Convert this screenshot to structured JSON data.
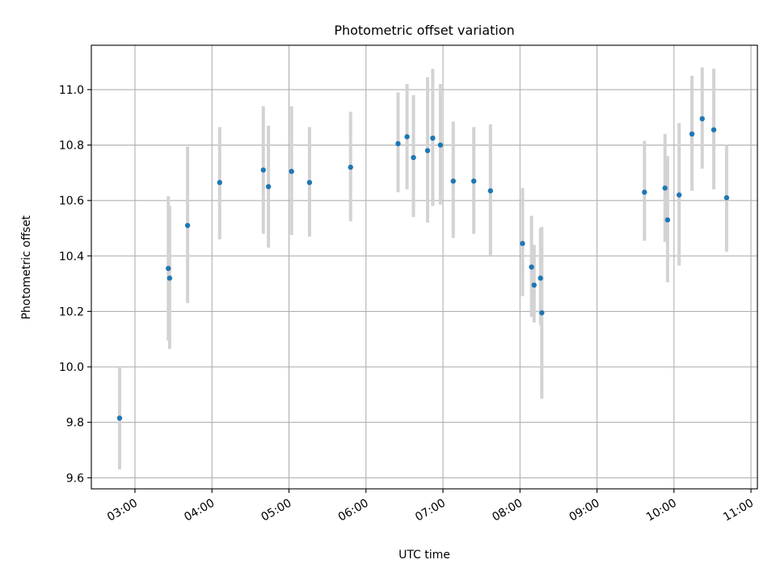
{
  "chart_data": {
    "type": "scatter",
    "title": "Photometric offset variation",
    "xlabel": "UTC time",
    "ylabel": "Photometric offset",
    "x_axis": "time (HH:MM)",
    "xlim": [
      "02:26",
      "11:05"
    ],
    "ylim": [
      9.56,
      11.16
    ],
    "x_ticks": [
      "03:00",
      "04:00",
      "05:00",
      "06:00",
      "07:00",
      "08:00",
      "09:00",
      "10:00",
      "11:00"
    ],
    "y_ticks": [
      "9.6",
      "9.8",
      "10.0",
      "10.2",
      "10.4",
      "10.6",
      "10.8",
      "11.0"
    ],
    "grid": true,
    "marker_color": "#1f77b4",
    "errorbar_color": "#d3d3d3",
    "series": [
      {
        "points": [
          {
            "x": "02:48",
            "y": 9.815,
            "low": 9.63,
            "high": 10.0
          },
          {
            "x": "03:26",
            "y": 10.355,
            "low": 10.095,
            "high": 10.615
          },
          {
            "x": "03:27",
            "y": 10.32,
            "low": 10.065,
            "high": 10.58
          },
          {
            "x": "03:41",
            "y": 10.51,
            "low": 10.23,
            "high": 10.795
          },
          {
            "x": "04:06",
            "y": 10.665,
            "low": 10.46,
            "high": 10.865
          },
          {
            "x": "04:40",
            "y": 10.71,
            "low": 10.48,
            "high": 10.94
          },
          {
            "x": "04:44",
            "y": 10.65,
            "low": 10.43,
            "high": 10.87
          },
          {
            "x": "05:02",
            "y": 10.705,
            "low": 10.475,
            "high": 10.94
          },
          {
            "x": "05:16",
            "y": 10.665,
            "low": 10.47,
            "high": 10.865
          },
          {
            "x": "05:48",
            "y": 10.72,
            "low": 10.525,
            "high": 10.92
          },
          {
            "x": "06:25",
            "y": 10.805,
            "low": 10.63,
            "high": 10.99
          },
          {
            "x": "06:32",
            "y": 10.83,
            "low": 10.64,
            "high": 11.02
          },
          {
            "x": "06:37",
            "y": 10.755,
            "low": 10.54,
            "high": 10.98
          },
          {
            "x": "06:48",
            "y": 10.78,
            "low": 10.52,
            "high": 11.045
          },
          {
            "x": "06:52",
            "y": 10.825,
            "low": 10.58,
            "high": 11.075
          },
          {
            "x": "06:58",
            "y": 10.8,
            "low": 10.585,
            "high": 11.02
          },
          {
            "x": "07:08",
            "y": 10.67,
            "low": 10.465,
            "high": 10.885
          },
          {
            "x": "07:24",
            "y": 10.67,
            "low": 10.48,
            "high": 10.865
          },
          {
            "x": "07:37",
            "y": 10.635,
            "low": 10.4,
            "high": 10.875
          },
          {
            "x": "08:02",
            "y": 10.445,
            "low": 10.255,
            "high": 10.645
          },
          {
            "x": "08:09",
            "y": 10.36,
            "low": 10.18,
            "high": 10.545
          },
          {
            "x": "08:11",
            "y": 10.295,
            "low": 10.16,
            "high": 10.44
          },
          {
            "x": "08:16",
            "y": 10.32,
            "low": 10.15,
            "high": 10.5
          },
          {
            "x": "08:17",
            "y": 10.195,
            "low": 9.885,
            "high": 10.505
          },
          {
            "x": "09:37",
            "y": 10.63,
            "low": 10.455,
            "high": 10.815
          },
          {
            "x": "09:53",
            "y": 10.645,
            "low": 10.45,
            "high": 10.84
          },
          {
            "x": "09:55",
            "y": 10.53,
            "low": 10.305,
            "high": 10.76
          },
          {
            "x": "10:04",
            "y": 10.62,
            "low": 10.365,
            "high": 10.88
          },
          {
            "x": "10:14",
            "y": 10.84,
            "low": 10.635,
            "high": 11.05
          },
          {
            "x": "10:22",
            "y": 10.895,
            "low": 10.715,
            "high": 11.08
          },
          {
            "x": "10:31",
            "y": 10.855,
            "low": 10.64,
            "high": 11.075
          },
          {
            "x": "10:41",
            "y": 10.61,
            "low": 10.415,
            "high": 10.8
          }
        ]
      }
    ]
  }
}
